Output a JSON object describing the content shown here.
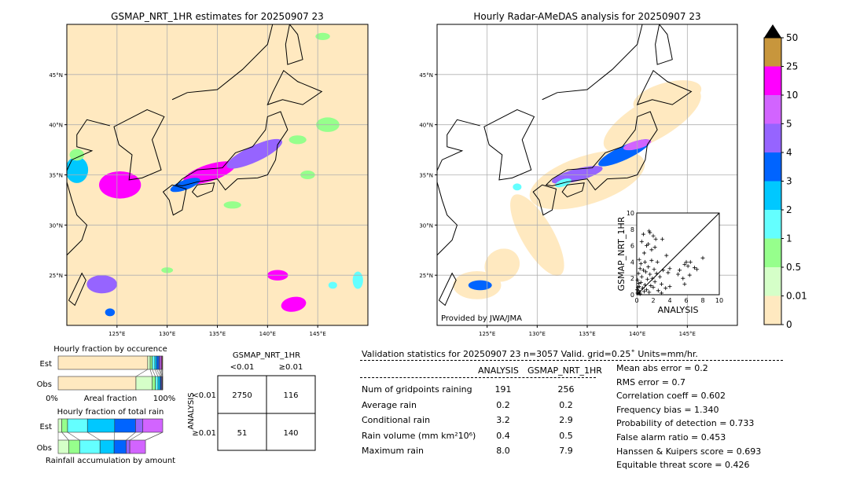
{
  "colors": {
    "bins": [
      "#ffe9c0",
      "#d5ffc8",
      "#96ff8c",
      "#64ffff",
      "#00c8ff",
      "#0064ff",
      "#9664ff",
      "#d264ff",
      "#ff00ff",
      "#c8963c"
    ],
    "over": "#000000",
    "land_line": "#000000",
    "grid": "#b0b0b0"
  },
  "chart_data": [
    {
      "type": "heatmap",
      "id": "left-map",
      "title": "GSMAP_NRT_1HR estimates for 20250907 23",
      "xlim": [
        120,
        150
      ],
      "ylim": [
        20,
        50
      ],
      "xticks": [
        {
          "v": 125,
          "label": "125°E"
        },
        {
          "v": 130,
          "label": "130°E"
        },
        {
          "v": 135,
          "label": "135°E"
        },
        {
          "v": 140,
          "label": "140°E"
        },
        {
          "v": 145,
          "label": "145°E"
        }
      ],
      "yticks": [
        {
          "v": 45,
          "label": "45°N"
        },
        {
          "v": 40,
          "label": "40°N"
        },
        {
          "v": 35,
          "label": "35°N"
        },
        {
          "v": 30,
          "label": "30°N"
        },
        {
          "v": 25,
          "label": "25°N"
        }
      ],
      "grid": true
    },
    {
      "type": "heatmap",
      "id": "right-map",
      "title": "Hourly Radar-AMeDAS analysis for 20250907 23",
      "xlim": [
        120,
        150
      ],
      "ylim": [
        20,
        50
      ],
      "xticks": [
        {
          "v": 125,
          "label": "125°E"
        },
        {
          "v": 130,
          "label": "130°E"
        },
        {
          "v": 135,
          "label": "135°E"
        },
        {
          "v": 140,
          "label": "140°E"
        },
        {
          "v": 145,
          "label": "145°E"
        }
      ],
      "yticks": [
        {
          "v": 45,
          "label": "45°N"
        },
        {
          "v": 40,
          "label": "40°N"
        },
        {
          "v": 35,
          "label": "35°N"
        },
        {
          "v": 30,
          "label": "30°N"
        },
        {
          "v": 25,
          "label": "25°N"
        }
      ],
      "grid": true,
      "credit": "Provided by JWA/JMA"
    },
    {
      "type": "scatter",
      "id": "inset-scatter",
      "xlabel": "ANALYSIS",
      "ylabel": "GSMAP_NRT_1HR",
      "xlim": [
        0,
        10
      ],
      "ylim": [
        0,
        10
      ],
      "xticks": [
        0,
        2,
        4,
        6,
        8,
        10
      ],
      "yticks": [
        0,
        2,
        4,
        6,
        8,
        10
      ],
      "points": [
        [
          0.1,
          0.2
        ],
        [
          0.2,
          0.5
        ],
        [
          0.3,
          1.0
        ],
        [
          0.4,
          0.1
        ],
        [
          0.5,
          1.5
        ],
        [
          0.6,
          2.2
        ],
        [
          0.7,
          0.8
        ],
        [
          0.8,
          3.0
        ],
        [
          0.9,
          0.4
        ],
        [
          1.0,
          1.2
        ],
        [
          1.1,
          2.8
        ],
        [
          1.2,
          0.6
        ],
        [
          1.3,
          1.9
        ],
        [
          1.4,
          3.4
        ],
        [
          1.5,
          0.3
        ],
        [
          1.6,
          2.5
        ],
        [
          1.7,
          1.1
        ],
        [
          1.8,
          4.2
        ],
        [
          1.9,
          2.0
        ],
        [
          2.0,
          0.9
        ],
        [
          2.1,
          3.1
        ],
        [
          2.2,
          1.6
        ],
        [
          2.4,
          2.6
        ],
        [
          2.6,
          0.5
        ],
        [
          2.8,
          2.2
        ],
        [
          3.0,
          1.3
        ],
        [
          3.2,
          3.0
        ],
        [
          3.5,
          0.8
        ],
        [
          3.8,
          2.7
        ],
        [
          4.0,
          1.0
        ],
        [
          0.6,
          6.5
        ],
        [
          0.8,
          7.4
        ],
        [
          1.5,
          7.8
        ],
        [
          1.6,
          7.6
        ],
        [
          2.0,
          7.2
        ],
        [
          2.3,
          6.8
        ],
        [
          1.2,
          6.0
        ],
        [
          1.4,
          6.2
        ],
        [
          0.9,
          5.1
        ],
        [
          1.8,
          5.5
        ],
        [
          2.2,
          5.8
        ],
        [
          3.1,
          6.8
        ],
        [
          0.3,
          4.3
        ],
        [
          0.5,
          3.8
        ],
        [
          1.0,
          4.0
        ],
        [
          2.5,
          4.0
        ],
        [
          3.6,
          4.8
        ],
        [
          4.0,
          3.2
        ],
        [
          5.0,
          2.5
        ],
        [
          5.2,
          3.0
        ],
        [
          5.6,
          2.0
        ],
        [
          5.8,
          3.7
        ],
        [
          6.0,
          4.0
        ],
        [
          6.2,
          3.5
        ],
        [
          6.5,
          4.0
        ],
        [
          7.0,
          3.3
        ],
        [
          7.3,
          3.1
        ],
        [
          8.0,
          4.5
        ],
        [
          5.8,
          1.3
        ],
        [
          6.4,
          2.4
        ],
        [
          3.0,
          0.2
        ],
        [
          0.1,
          1.8
        ],
        [
          0.2,
          2.6
        ],
        [
          0.4,
          3.2
        ],
        [
          0.15,
          0.9
        ],
        [
          0.25,
          1.4
        ],
        [
          0.35,
          0.3
        ],
        [
          0.05,
          0.6
        ]
      ],
      "reference_line": "y=x"
    },
    {
      "type": "bar",
      "id": "occurrence-fraction",
      "title": "Hourly fraction by occurence",
      "xlabel": "Areal fraction",
      "xtick_labels": [
        "0%",
        "100%"
      ],
      "categories": [
        "Est",
        "Obs"
      ],
      "series": [
        {
          "category": "Est",
          "fractions": [
            0.856,
            0.024,
            0.02,
            0.025,
            0.018,
            0.02,
            0.012,
            0.013,
            0.006,
            0.006
          ]
        },
        {
          "category": "Obs",
          "fractions": [
            0.744,
            0.156,
            0.03,
            0.025,
            0.02,
            0.01,
            0.008,
            0.004,
            0.002,
            0.001
          ]
        }
      ],
      "stacked": true
    },
    {
      "type": "bar",
      "id": "rain-fraction",
      "title": "Hourly fraction of total rain",
      "xlabel": "Rainfall accumulation by amount",
      "categories": [
        "Est",
        "Obs"
      ],
      "series": [
        {
          "category": "Est",
          "fractions": [
            0,
            0.035,
            0.055,
            0.19,
            0.26,
            0.2,
            0.07,
            0.19,
            0,
            0
          ]
        },
        {
          "category": "Obs",
          "fractions": [
            0,
            0.1,
            0.105,
            0.195,
            0.135,
            0.115,
            0.035,
            0.15,
            0,
            0
          ]
        }
      ],
      "stacked": true
    },
    {
      "type": "table",
      "id": "contingency-table",
      "col_title": "GSMAP_NRT_1HR",
      "row_title": "ANALYSIS",
      "col_labels": [
        "<0.01",
        "≥0.01"
      ],
      "row_labels": [
        "<0.01",
        "≥0.01"
      ],
      "cells": [
        [
          "2750",
          "116"
        ],
        [
          "51",
          "140"
        ]
      ]
    },
    {
      "type": "bar",
      "id": "colorbar",
      "tick_labels": [
        "0",
        "0.01",
        "0.5",
        "1",
        "2",
        "3",
        "4",
        "5",
        "10",
        "25",
        "50"
      ],
      "extend": "max"
    }
  ],
  "stats": {
    "header": "Validation statistics for 20250907 23  n=3057 Valid. grid=0.25˚ Units=mm/hr.",
    "col_analysis": "ANALYSIS",
    "col_gsmap": "GSMAP_NRT_1HR",
    "rows": [
      {
        "label": "Num of gridpoints raining",
        "analysis": "191",
        "gsmap": "256"
      },
      {
        "label": "Average rain",
        "analysis": "0.2",
        "gsmap": "0.2"
      },
      {
        "label": "Conditional rain",
        "analysis": "3.2",
        "gsmap": "2.9"
      },
      {
        "label": "Rain volume (mm km²10⁶)",
        "analysis": "0.4",
        "gsmap": "0.5"
      },
      {
        "label": "Maximum rain",
        "analysis": "8.0",
        "gsmap": "7.9"
      }
    ],
    "scores": [
      "Mean abs error =    0.2",
      "RMS error =    0.7",
      "Correlation coeff =  0.602",
      "Frequency bias =  1.340",
      "Probability of detection =  0.733",
      "False alarm ratio =  0.453",
      "Hanssen & Kuipers score =  0.693",
      "Equitable threat score =  0.426"
    ]
  }
}
